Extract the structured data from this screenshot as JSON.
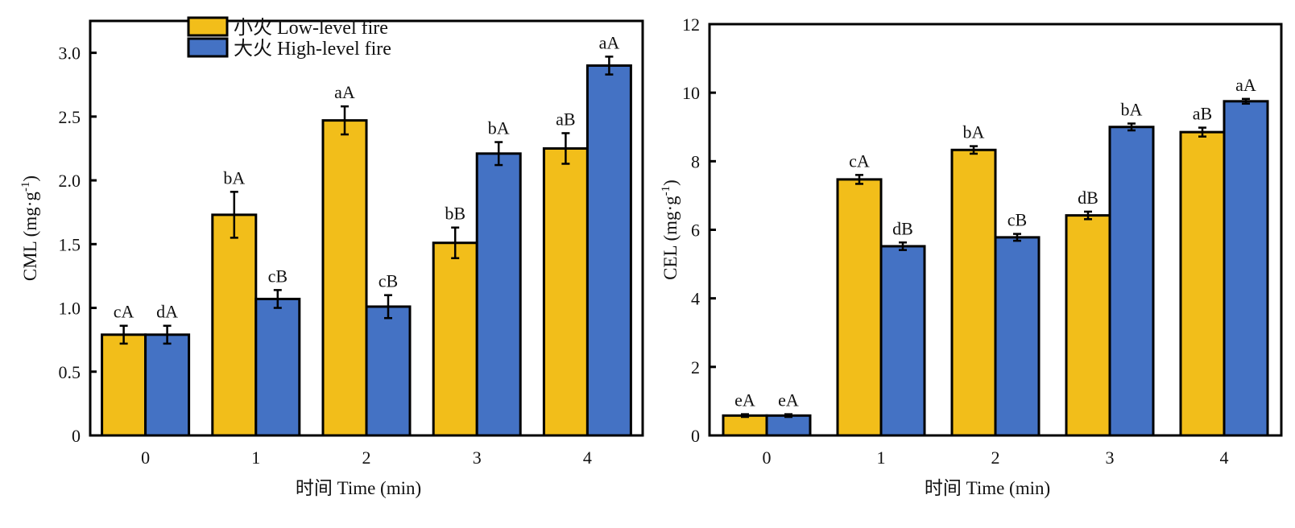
{
  "colors": {
    "low": "#F2BE1A",
    "high": "#4472C4"
  },
  "legend": {
    "low": "小火 Low-level fire",
    "high": "大火 High-level fire"
  },
  "chart_data": [
    {
      "type": "bar",
      "categories": [
        "0",
        "1",
        "2",
        "3",
        "4"
      ],
      "xlabel": "时间 Time (min)",
      "ylabel": "CML (mg·g",
      "ylabel_sup": "-1",
      "ylabel_close": ")",
      "ylim": [
        0,
        3.25
      ],
      "yticks": [
        0,
        0.5,
        1.0,
        1.5,
        2.0,
        2.5,
        3.0
      ],
      "ytick_labels": [
        "0",
        "0.5",
        "1.0",
        "1.5",
        "2.0",
        "2.5",
        "3.0"
      ],
      "legend_position": "top-center",
      "series": [
        {
          "name": "小火 Low-level fire",
          "values": [
            0.79,
            1.73,
            2.47,
            1.51,
            2.25
          ],
          "errors": [
            0.07,
            0.18,
            0.11,
            0.12,
            0.12
          ],
          "labels": [
            "cA",
            "bA",
            "aA",
            "bB",
            "aB"
          ]
        },
        {
          "name": "大火 High-level fire",
          "values": [
            0.79,
            1.07,
            1.01,
            2.21,
            2.9
          ],
          "errors": [
            0.07,
            0.07,
            0.09,
            0.09,
            0.07
          ],
          "labels": [
            "dA",
            "cB",
            "cB",
            "bA",
            "aA"
          ]
        }
      ]
    },
    {
      "type": "bar",
      "categories": [
        "0",
        "1",
        "2",
        "3",
        "4"
      ],
      "xlabel": "时间 Time (min)",
      "ylabel": "CEL (mg·g",
      "ylabel_sup": "-1",
      "ylabel_close": ")",
      "ylim": [
        0,
        12
      ],
      "yticks": [
        0,
        2,
        4,
        6,
        8,
        10,
        12
      ],
      "ytick_labels": [
        "0",
        "2",
        "4",
        "6",
        "8",
        "10",
        "12"
      ],
      "series": [
        {
          "name": "小火 Low-level fire",
          "values": [
            0.58,
            7.47,
            8.33,
            6.42,
            8.85
          ],
          "errors": [
            0.04,
            0.13,
            0.11,
            0.11,
            0.13
          ],
          "labels": [
            "eA",
            "cA",
            "bA",
            "dB",
            "aB"
          ]
        },
        {
          "name": "大火 High-level fire",
          "values": [
            0.58,
            5.52,
            5.78,
            9.0,
            9.75
          ],
          "errors": [
            0.04,
            0.11,
            0.1,
            0.1,
            0.07
          ],
          "labels": [
            "eA",
            "dB",
            "cB",
            "bA",
            "aA"
          ]
        }
      ]
    }
  ]
}
